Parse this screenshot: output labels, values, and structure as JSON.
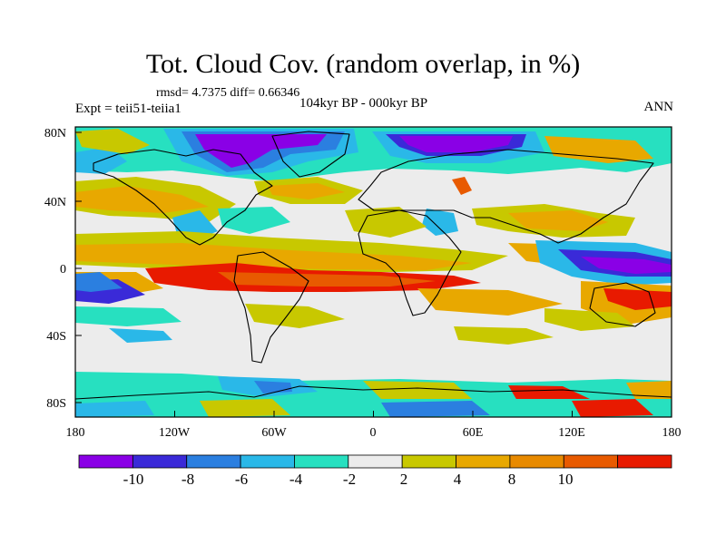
{
  "title": "Tot. Cloud Cov. (random overlap, in %)",
  "stats": "rmsd= 4.7375 diff= 0.66346",
  "experiment": "Expt = teii51-teiia1",
  "period": "104kyr BP - 000kyr BP",
  "season": "ANN",
  "lat_labels": [
    "80N",
    "40N",
    "0",
    "40S",
    "80S"
  ],
  "lon_labels": [
    "180",
    "120W",
    "60W",
    "0",
    "60E",
    "120E",
    "180"
  ],
  "colorbar": {
    "colors": [
      "#8a00e6",
      "#3a2ad8",
      "#2b7fe0",
      "#2ab8e8",
      "#27e0c0",
      "#ececec",
      "#c8c800",
      "#e8a800",
      "#e88a00",
      "#e85a00",
      "#e81a00"
    ],
    "labels": [
      "-10",
      "-8",
      "-6",
      "-4",
      "-2",
      "2",
      "4",
      "8",
      "10"
    ]
  }
}
